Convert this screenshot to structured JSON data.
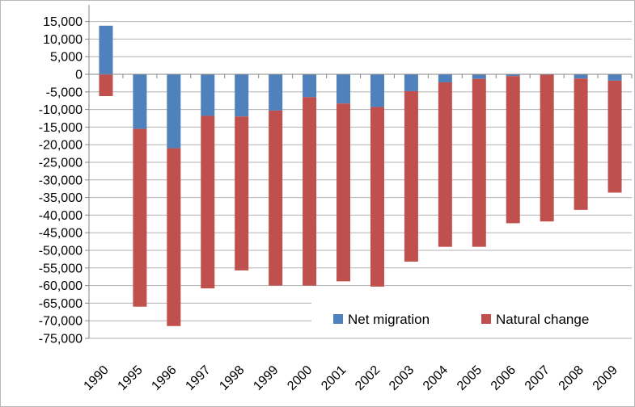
{
  "chart_data": {
    "type": "bar",
    "stacked": true,
    "categories": [
      "1990",
      "1995",
      "1996",
      "1997",
      "1998",
      "1999",
      "2000",
      "2001",
      "2002",
      "2003",
      "2004",
      "2005",
      "2006",
      "2007",
      "2008",
      "2009"
    ],
    "series": [
      {
        "name": "Net migration",
        "color": "#4f81bd",
        "values": [
          13800,
          -15500,
          -21000,
          -11800,
          -12000,
          -10300,
          -6500,
          -8300,
          -9300,
          -4800,
          -2300,
          -1300,
          -500,
          0,
          -1200,
          -1800
        ]
      },
      {
        "name": "Natural change",
        "color": "#c0504d",
        "values": [
          -6200,
          -50500,
          -50500,
          -49000,
          -43700,
          -49700,
          -53500,
          -50500,
          -51000,
          -48400,
          -46700,
          -47700,
          -41800,
          -41800,
          -37300,
          -31800
        ]
      }
    ],
    "ylim": [
      -75000,
      15000
    ],
    "yticks": [
      "15,000",
      "10,000",
      "5,000",
      "0",
      "-5,000",
      "-10,000",
      "-15,000",
      "-20,000",
      "-25,000",
      "-30,000",
      "-35,000",
      "-40,000",
      "-45,000",
      "-50,000",
      "-55,000",
      "-60,000",
      "-65,000",
      "-70,000",
      "-75,000"
    ],
    "ytick_values": [
      15000,
      10000,
      5000,
      0,
      -5000,
      -10000,
      -15000,
      -20000,
      -25000,
      -30000,
      -35000,
      -40000,
      -45000,
      -50000,
      -55000,
      -60000,
      -65000,
      -70000,
      -75000
    ],
    "grid": true,
    "legend_position": "bottom-right, inside plot",
    "gridline_color": "#b0b0b0",
    "axis_color": "#868686",
    "title": "",
    "xlabel": "",
    "ylabel": ""
  }
}
